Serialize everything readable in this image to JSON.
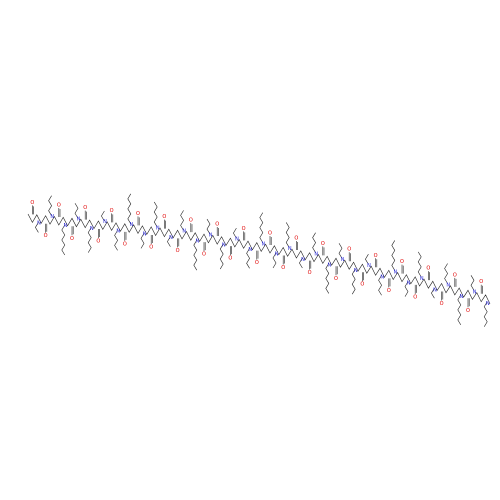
{
  "molecule": {
    "atoms": [
      {
        "label": "O",
        "color": "#e00000"
      },
      {
        "label": "N",
        "color": "#2020d0"
      },
      {
        "label": "O",
        "color": "#e00000"
      },
      {
        "label": "N",
        "color": "#2020d0"
      },
      {
        "label": "O",
        "color": "#e00000"
      },
      {
        "label": "N",
        "color": "#2020d0"
      },
      {
        "label": "O",
        "color": "#e00000"
      },
      {
        "label": "N",
        "color": "#2020d0"
      },
      {
        "label": "O",
        "color": "#e00000"
      },
      {
        "label": "N",
        "color": "#2020d0"
      },
      {
        "label": "O",
        "color": "#e00000"
      },
      {
        "label": "N",
        "color": "#2020d0"
      },
      {
        "label": "O",
        "color": "#e00000"
      },
      {
        "label": "N",
        "color": "#2020d0"
      },
      {
        "label": "O",
        "color": "#e00000"
      },
      {
        "label": "N",
        "color": "#2020d0"
      },
      {
        "label": "O",
        "color": "#e00000"
      },
      {
        "label": "N",
        "color": "#2020d0"
      },
      {
        "label": "O",
        "color": "#e00000"
      },
      {
        "label": "N",
        "color": "#2020d0"
      },
      {
        "label": "O",
        "color": "#e00000"
      },
      {
        "label": "N",
        "color": "#2020d0"
      },
      {
        "label": "O",
        "color": "#e00000"
      },
      {
        "label": "N",
        "color": "#2020d0"
      },
      {
        "label": "O",
        "color": "#e00000"
      },
      {
        "label": "N",
        "color": "#2020d0"
      },
      {
        "label": "O",
        "color": "#e00000"
      },
      {
        "label": "N",
        "color": "#2020d0"
      },
      {
        "label": "O",
        "color": "#e00000"
      },
      {
        "label": "N",
        "color": "#2020d0"
      },
      {
        "label": "O",
        "color": "#e00000"
      },
      {
        "label": "N",
        "color": "#2020d0"
      },
      {
        "label": "O",
        "color": "#e00000"
      },
      {
        "label": "N",
        "color": "#2020d0"
      },
      {
        "label": "O",
        "color": "#e00000"
      },
      {
        "label": "N",
        "color": "#2020d0"
      },
      {
        "label": "O",
        "color": "#e00000"
      },
      {
        "label": "N",
        "color": "#2020d0"
      },
      {
        "label": "O",
        "color": "#e00000"
      },
      {
        "label": "N",
        "color": "#2020d0"
      },
      {
        "label": "O",
        "color": "#e00000"
      },
      {
        "label": "N",
        "color": "#2020d0"
      },
      {
        "label": "O",
        "color": "#e00000"
      },
      {
        "label": "N",
        "color": "#2020d0"
      },
      {
        "label": "O",
        "color": "#e00000"
      },
      {
        "label": "N",
        "color": "#2020d0"
      },
      {
        "label": "O",
        "color": "#e00000"
      },
      {
        "label": "N",
        "color": "#2020d0"
      },
      {
        "label": "O",
        "color": "#e00000"
      },
      {
        "label": "N",
        "color": "#2020d0"
      },
      {
        "label": "O",
        "color": "#e00000"
      },
      {
        "label": "N",
        "color": "#2020d0"
      },
      {
        "label": "O",
        "color": "#e00000"
      },
      {
        "label": "N",
        "color": "#2020d0"
      },
      {
        "label": "O",
        "color": "#e00000"
      },
      {
        "label": "N",
        "color": "#2020d0"
      },
      {
        "label": "O",
        "color": "#e00000"
      },
      {
        "label": "N",
        "color": "#2020d0"
      },
      {
        "label": "O",
        "color": "#e00000"
      },
      {
        "label": "N",
        "color": "#2020d0"
      },
      {
        "label": "O",
        "color": "#e00000"
      },
      {
        "label": "N",
        "color": "#2020d0"
      },
      {
        "label": "O",
        "color": "#e00000"
      },
      {
        "label": "N",
        "color": "#2020d0"
      },
      {
        "label": "O",
        "color": "#e00000"
      },
      {
        "label": "N",
        "color": "#2020d0"
      },
      {
        "label": "O",
        "color": "#e00000"
      },
      {
        "label": "N",
        "color": "#2020d0"
      },
      {
        "label": "O",
        "color": "#e00000"
      },
      {
        "label": "N",
        "color": "#2020d0"
      }
    ]
  }
}
